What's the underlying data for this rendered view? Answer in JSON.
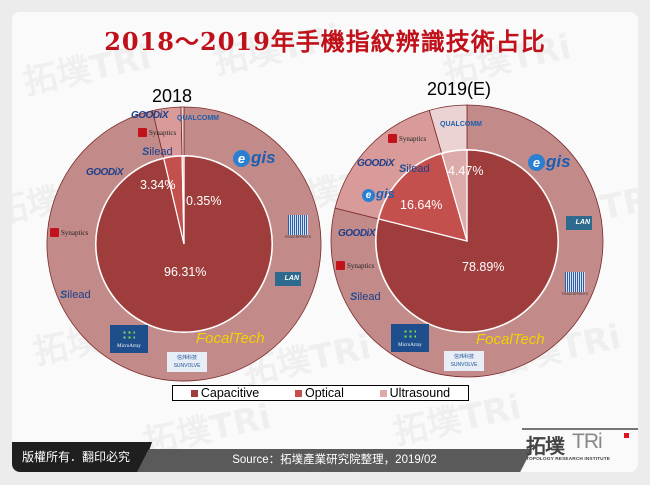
{
  "title": "2018～2019年手機指紋辨識技術占比",
  "watermark": {
    "zh": "拓墣TRi",
    "en": "TOPOLOGY RESEARCH INSTITUTE"
  },
  "colors": {
    "capacitive": "#9e3d3c",
    "optical": "#c4504e",
    "ultrasound": "#dcaaa9",
    "ring_capacitive": "#c28a89",
    "ring_optical": "#d89b9a",
    "ring_ultrasound": "#ead3d2",
    "title_red": "#c0101a"
  },
  "chart_data": [
    {
      "type": "pie",
      "title": "2018",
      "categories": [
        "Capacitive",
        "Optical",
        "Ultrasound"
      ],
      "values": [
        96.31,
        3.34,
        0.35
      ],
      "labels": [
        "96.31%",
        "3.34%",
        "0.35%"
      ],
      "outer_ring_vendors": {
        "Capacitive": [
          "Egis Technology",
          "Fingerprints",
          "ELAN",
          "FocalTech",
          "Sunvolve",
          "MicroArray",
          "Silead",
          "Synaptics",
          "Goodix"
        ],
        "Optical": [
          "Goodix",
          "Synaptics",
          "Silead"
        ],
        "Ultrasound": [
          "Qualcomm"
        ]
      }
    },
    {
      "type": "pie",
      "title": "2019(E)",
      "categories": [
        "Capacitive",
        "Optical",
        "Ultrasound"
      ],
      "values": [
        78.89,
        16.64,
        4.47
      ],
      "labels": [
        "78.89%",
        "16.64%",
        "4.47%"
      ],
      "outer_ring_vendors": {
        "Capacitive": [
          "Egis Technology",
          "ELAN",
          "Fingerprints",
          "FocalTech",
          "Sunvolve",
          "MicroArray",
          "Silead",
          "Synaptics",
          "Goodix"
        ],
        "Optical": [
          "Egis",
          "Goodix",
          "Silead",
          "Synaptics"
        ],
        "Ultrasound": [
          "Qualcomm"
        ]
      }
    }
  ],
  "legend": [
    {
      "label": "Capacitive",
      "color": "#9e3d3c"
    },
    {
      "label": "Optical",
      "color": "#c4504e"
    },
    {
      "label": "Ultrasound",
      "color": "#dcaaa9"
    }
  ],
  "logos": {
    "goodix": "GOODiX",
    "qualcomm": "QUALCOMM",
    "synaptics": "Synaptics",
    "silead": "ilead",
    "silead_s": "S",
    "egis_e": "e",
    "egis": "gis",
    "fingerprints": "FINGERPRINTS",
    "elan": "LAN",
    "microarray": "MicroArray",
    "sunvolve_zh": "信炜科技",
    "sunvolve": "SUNVOLVE",
    "focaltech": "FocalTech"
  },
  "footer": {
    "copyright": "版權所有．翻印必究",
    "source": "Source：拓墣產業研究院整理，2019/02",
    "brand_zh": "拓墣",
    "brand_en": "TRi",
    "brand_sub": "TOPOLOGY RESEARCH INSTITUTE"
  }
}
